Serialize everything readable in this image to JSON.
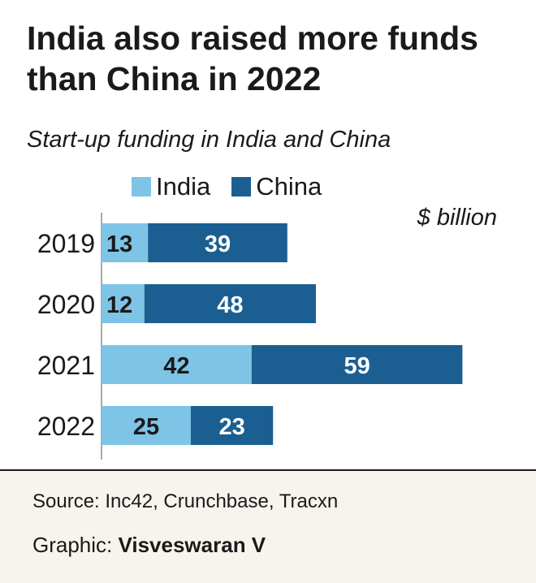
{
  "title": "India also raised more funds than China in 2022",
  "subtitle": "Start-up funding in India and China",
  "unit": "$ billion",
  "colors": {
    "india": "#7ec4e6",
    "china": "#1b5f92",
    "footer_bg": "#f7f4ee"
  },
  "chart_data": {
    "type": "bar",
    "orientation": "horizontal",
    "stacked": true,
    "categories": [
      "2019",
      "2020",
      "2021",
      "2022"
    ],
    "series": [
      {
        "name": "India",
        "values": [
          13,
          12,
          42,
          25
        ]
      },
      {
        "name": "China",
        "values": [
          39,
          48,
          59,
          23
        ]
      }
    ],
    "legend_position": "top",
    "grid": false
  },
  "footer": {
    "source": "Source: Inc42, Crunchbase, Tracxn",
    "credit_label": "Graphic:",
    "credit_name": "Visveswaran V"
  }
}
